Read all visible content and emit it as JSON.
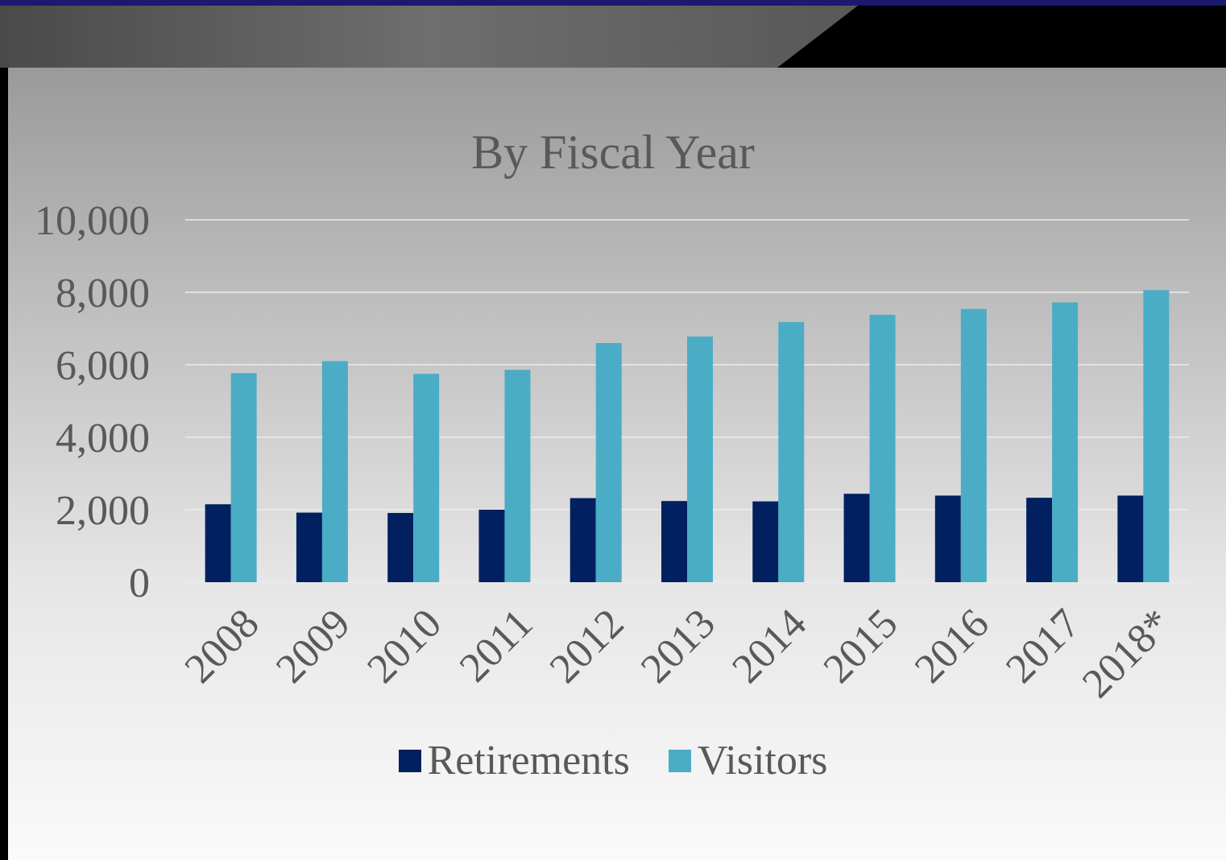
{
  "chart_data": {
    "type": "bar",
    "title": "By Fiscal Year",
    "xlabel": "",
    "ylabel": "",
    "categories": [
      "2008",
      "2009",
      "2010",
      "2011",
      "2012",
      "2013",
      "2014",
      "2015",
      "2016",
      "2017",
      "2018*"
    ],
    "series": [
      {
        "name": "Retirements",
        "color": "#002060",
        "values": [
          2150,
          1920,
          1910,
          2000,
          2320,
          2240,
          2230,
          2440,
          2390,
          2330,
          2390
        ]
      },
      {
        "name": "Visitors",
        "color": "#4bacc6",
        "values": [
          5770,
          6100,
          5750,
          5860,
          6600,
          6780,
          7180,
          7380,
          7540,
          7720,
          8060
        ]
      }
    ],
    "ylim": [
      0,
      10000
    ],
    "yticks": [
      "0",
      "2,000",
      "4,000",
      "6,000",
      "8,000",
      "10,000"
    ],
    "ytick_values": [
      0,
      2000,
      4000,
      6000,
      8000,
      10000
    ],
    "grid": true,
    "legend": "bottom"
  }
}
